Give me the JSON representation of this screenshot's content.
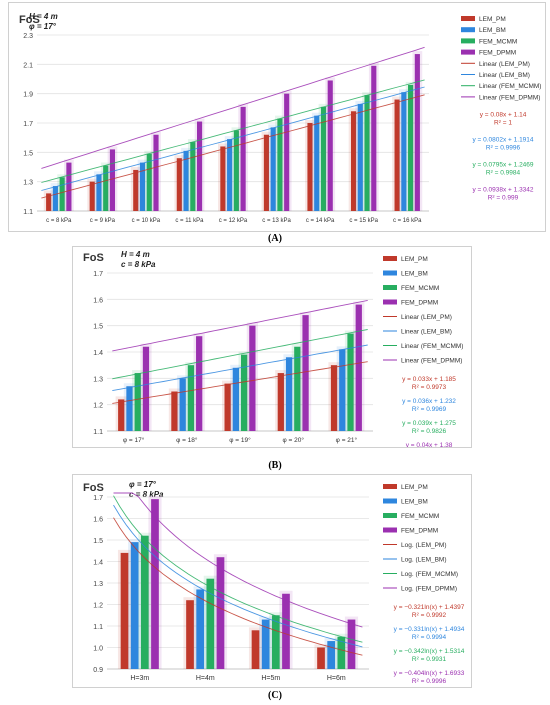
{
  "chart_data": [
    {
      "type": "bar",
      "label": "(A)",
      "ytitle": "FoS",
      "params": [
        "H = 4 m",
        "φ = 17°"
      ],
      "categories": [
        "c = 8 kPa",
        "c = 9 kPa",
        "c = 10 kPa",
        "c = 11 kPa",
        "c = 12 kPa",
        "c = 13 kPa",
        "c = 14 kPa",
        "c = 15 kPa",
        "c = 16 kPa"
      ],
      "ylim": [
        1.1,
        2.3
      ],
      "yticks": [
        1.1,
        1.3,
        1.5,
        1.7,
        1.9,
        2.1,
        2.3
      ],
      "grid": true,
      "legend_position": "right",
      "series": [
        {
          "name": "LEM_PM",
          "color": "#c0392b",
          "values": [
            1.22,
            1.3,
            1.38,
            1.46,
            1.54,
            1.62,
            1.7,
            1.78,
            1.86
          ]
        },
        {
          "name": "LEM_BM",
          "color": "#2e86de",
          "values": [
            1.27,
            1.35,
            1.43,
            1.51,
            1.59,
            1.67,
            1.75,
            1.83,
            1.91
          ]
        },
        {
          "name": "FEM_MCMM",
          "color": "#27ae60",
          "values": [
            1.33,
            1.41,
            1.49,
            1.57,
            1.65,
            1.73,
            1.81,
            1.89,
            1.96
          ]
        },
        {
          "name": "FEM_DPMM",
          "color": "#9b30b0",
          "values": [
            1.43,
            1.52,
            1.62,
            1.71,
            1.81,
            1.9,
            1.99,
            2.09,
            2.17
          ]
        }
      ],
      "trend_legend": [
        "Linear (LEM_PM)",
        "Linear (LEM_BM)",
        "Linear (FEM_MCMM)",
        "Linear (FEM_DPMM)"
      ],
      "trend_type": "linear",
      "trendlines": [
        {
          "a": 0.08,
          "b": 1.14
        },
        {
          "a": 0.0802,
          "b": 1.1914
        },
        {
          "a": 0.0795,
          "b": 1.2469
        },
        {
          "a": 0.0938,
          "b": 1.3342
        }
      ],
      "equations": [
        {
          "eq": "y = 0.08x + 1.14",
          "r2": "R² = 1"
        },
        {
          "eq": "y = 0.0802x + 1.1914",
          "r2": "R² = 0.9996"
        },
        {
          "eq": "y = 0.0795x + 1.2469",
          "r2": "R² = 0.9984"
        },
        {
          "eq": "y = 0.0938x + 1.3342",
          "r2": "R² = 0.999"
        }
      ]
    },
    {
      "type": "bar",
      "label": "(B)",
      "ytitle": "FoS",
      "params": [
        "H = 4 m",
        "c = 8 kPa"
      ],
      "categories": [
        "φ = 17°",
        "φ = 18°",
        "φ = 19°",
        "φ = 20°",
        "φ = 21°"
      ],
      "ylim": [
        1.1,
        1.7
      ],
      "yticks": [
        1.1,
        1.2,
        1.3,
        1.4,
        1.5,
        1.6,
        1.7
      ],
      "grid": true,
      "legend_position": "right",
      "series": [
        {
          "name": "LEM_PM",
          "color": "#c0392b",
          "values": [
            1.22,
            1.25,
            1.28,
            1.32,
            1.35
          ]
        },
        {
          "name": "LEM_BM",
          "color": "#2e86de",
          "values": [
            1.27,
            1.3,
            1.34,
            1.38,
            1.41
          ]
        },
        {
          "name": "FEM_MCMM",
          "color": "#27ae60",
          "values": [
            1.32,
            1.35,
            1.39,
            1.42,
            1.47
          ]
        },
        {
          "name": "FEM_DPMM",
          "color": "#9b30b0",
          "values": [
            1.42,
            1.46,
            1.5,
            1.54,
            1.58
          ]
        }
      ],
      "trend_legend": [
        "Linear (LEM_PM)",
        "Linear (LEM_BM)",
        "Linear (FEM_MCMM)",
        "Linear (FEM_DPMM)"
      ],
      "trend_type": "linear",
      "trendlines": [
        {
          "a": 0.033,
          "b": 1.185
        },
        {
          "a": 0.036,
          "b": 1.232
        },
        {
          "a": 0.039,
          "b": 1.275
        },
        {
          "a": 0.04,
          "b": 1.38
        }
      ],
      "equations": [
        {
          "eq": "y = 0.033x + 1.185",
          "r2": "R² = 0.9973"
        },
        {
          "eq": "y = 0.036x + 1.232",
          "r2": "R² = 0.9969"
        },
        {
          "eq": "y = 0.039x + 1.275",
          "r2": "R² = 0.9826"
        },
        {
          "eq": "y = 0.04x + 1.38",
          "r2": "R² = 1"
        }
      ]
    },
    {
      "type": "bar",
      "label": "(C)",
      "ytitle": "FoS",
      "params": [
        "φ = 17°",
        "c = 8 kPa"
      ],
      "categories": [
        "H=3m",
        "H=4m",
        "H=5m",
        "H=6m"
      ],
      "ylim": [
        0.9,
        1.7
      ],
      "yticks": [
        0.9,
        1.0,
        1.1,
        1.2,
        1.3,
        1.4,
        1.5,
        1.6,
        1.7
      ],
      "grid": true,
      "legend_position": "right",
      "series": [
        {
          "name": "LEM_PM",
          "color": "#c0392b",
          "values": [
            1.44,
            1.22,
            1.08,
            1.0
          ]
        },
        {
          "name": "LEM_BM",
          "color": "#2e86de",
          "values": [
            1.49,
            1.27,
            1.13,
            1.03
          ]
        },
        {
          "name": "FEM_MCMM",
          "color": "#27ae60",
          "values": [
            1.52,
            1.32,
            1.15,
            1.05
          ]
        },
        {
          "name": "FEM_DPMM",
          "color": "#9b30b0",
          "values": [
            1.69,
            1.42,
            1.25,
            1.13
          ]
        }
      ],
      "trend_legend": [
        "Log. (LEM_PM)",
        "Log. (LEM_BM)",
        "Log. (FEM_MCMM)",
        "Log. (FEM_DPMM)"
      ],
      "trend_type": "log",
      "trendlines": [
        {
          "a": -0.321,
          "b": 1.4397
        },
        {
          "a": -0.331,
          "b": 1.4934
        },
        {
          "a": -0.342,
          "b": 1.5314
        },
        {
          "a": -0.404,
          "b": 1.6933
        }
      ],
      "equations": [
        {
          "eq": "y = −0.321ln(x) + 1.4397",
          "r2": "R² = 0.9992"
        },
        {
          "eq": "y = −0.331ln(x) + 1.4934",
          "r2": "R² = 0.9994"
        },
        {
          "eq": "y = −0.342ln(x) + 1.5314",
          "r2": "R² = 0.9931"
        },
        {
          "eq": "y = −0.404ln(x) + 1.6933",
          "r2": "R² = 0.9996"
        }
      ]
    }
  ]
}
